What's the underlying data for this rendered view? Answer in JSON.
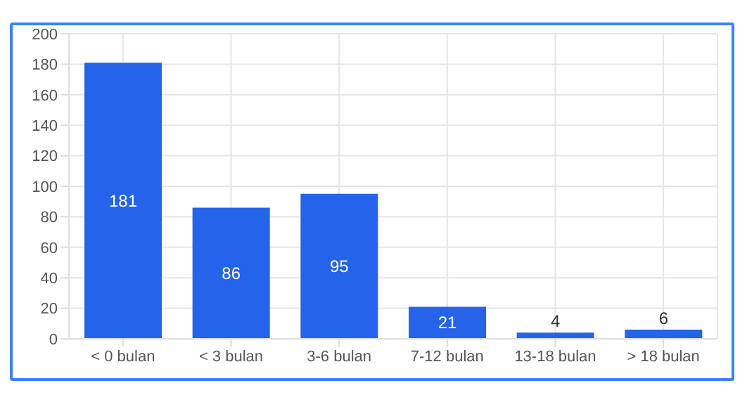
{
  "chart_data": {
    "type": "bar",
    "categories": [
      "< 0 bulan",
      "< 3 bulan",
      "3-6 bulan",
      "7-12 bulan",
      "13-18 bulan",
      "> 18 bulan"
    ],
    "values": [
      181,
      86,
      95,
      21,
      4,
      6
    ],
    "color": "#2563eb",
    "ylim": [
      0,
      200
    ],
    "yticks": [
      0,
      20,
      40,
      60,
      80,
      100,
      120,
      140,
      160,
      180,
      200
    ],
    "grid": true,
    "data_labels": true
  }
}
